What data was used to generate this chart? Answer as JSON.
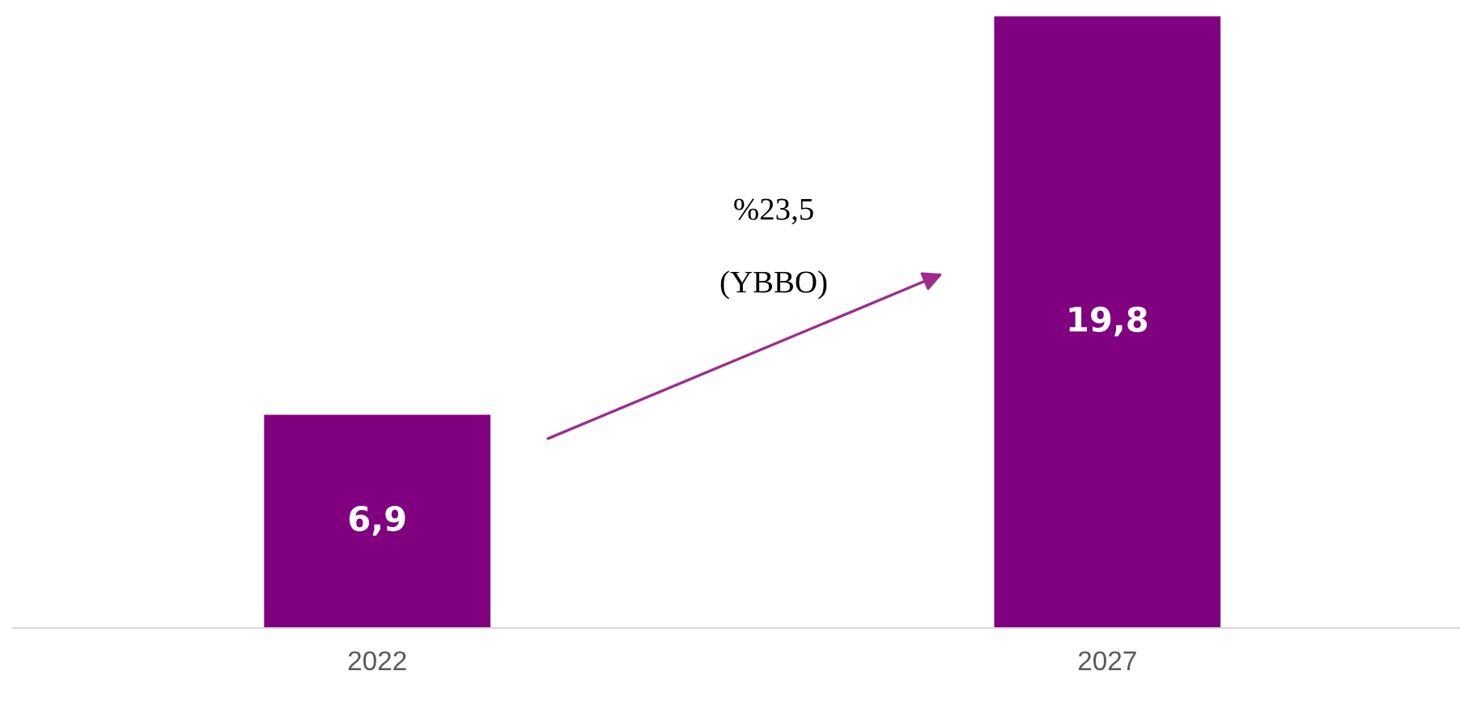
{
  "chart_data": {
    "type": "bar",
    "categories": [
      "2022",
      "2027"
    ],
    "values": [
      6.9,
      19.8
    ],
    "color": "#800080",
    "value_labels": [
      "6,9",
      "19,8"
    ],
    "annotations": [
      "%23,5",
      "(YBBO)"
    ],
    "grid": false,
    "legend": false,
    "tick_labels": "x"
  }
}
